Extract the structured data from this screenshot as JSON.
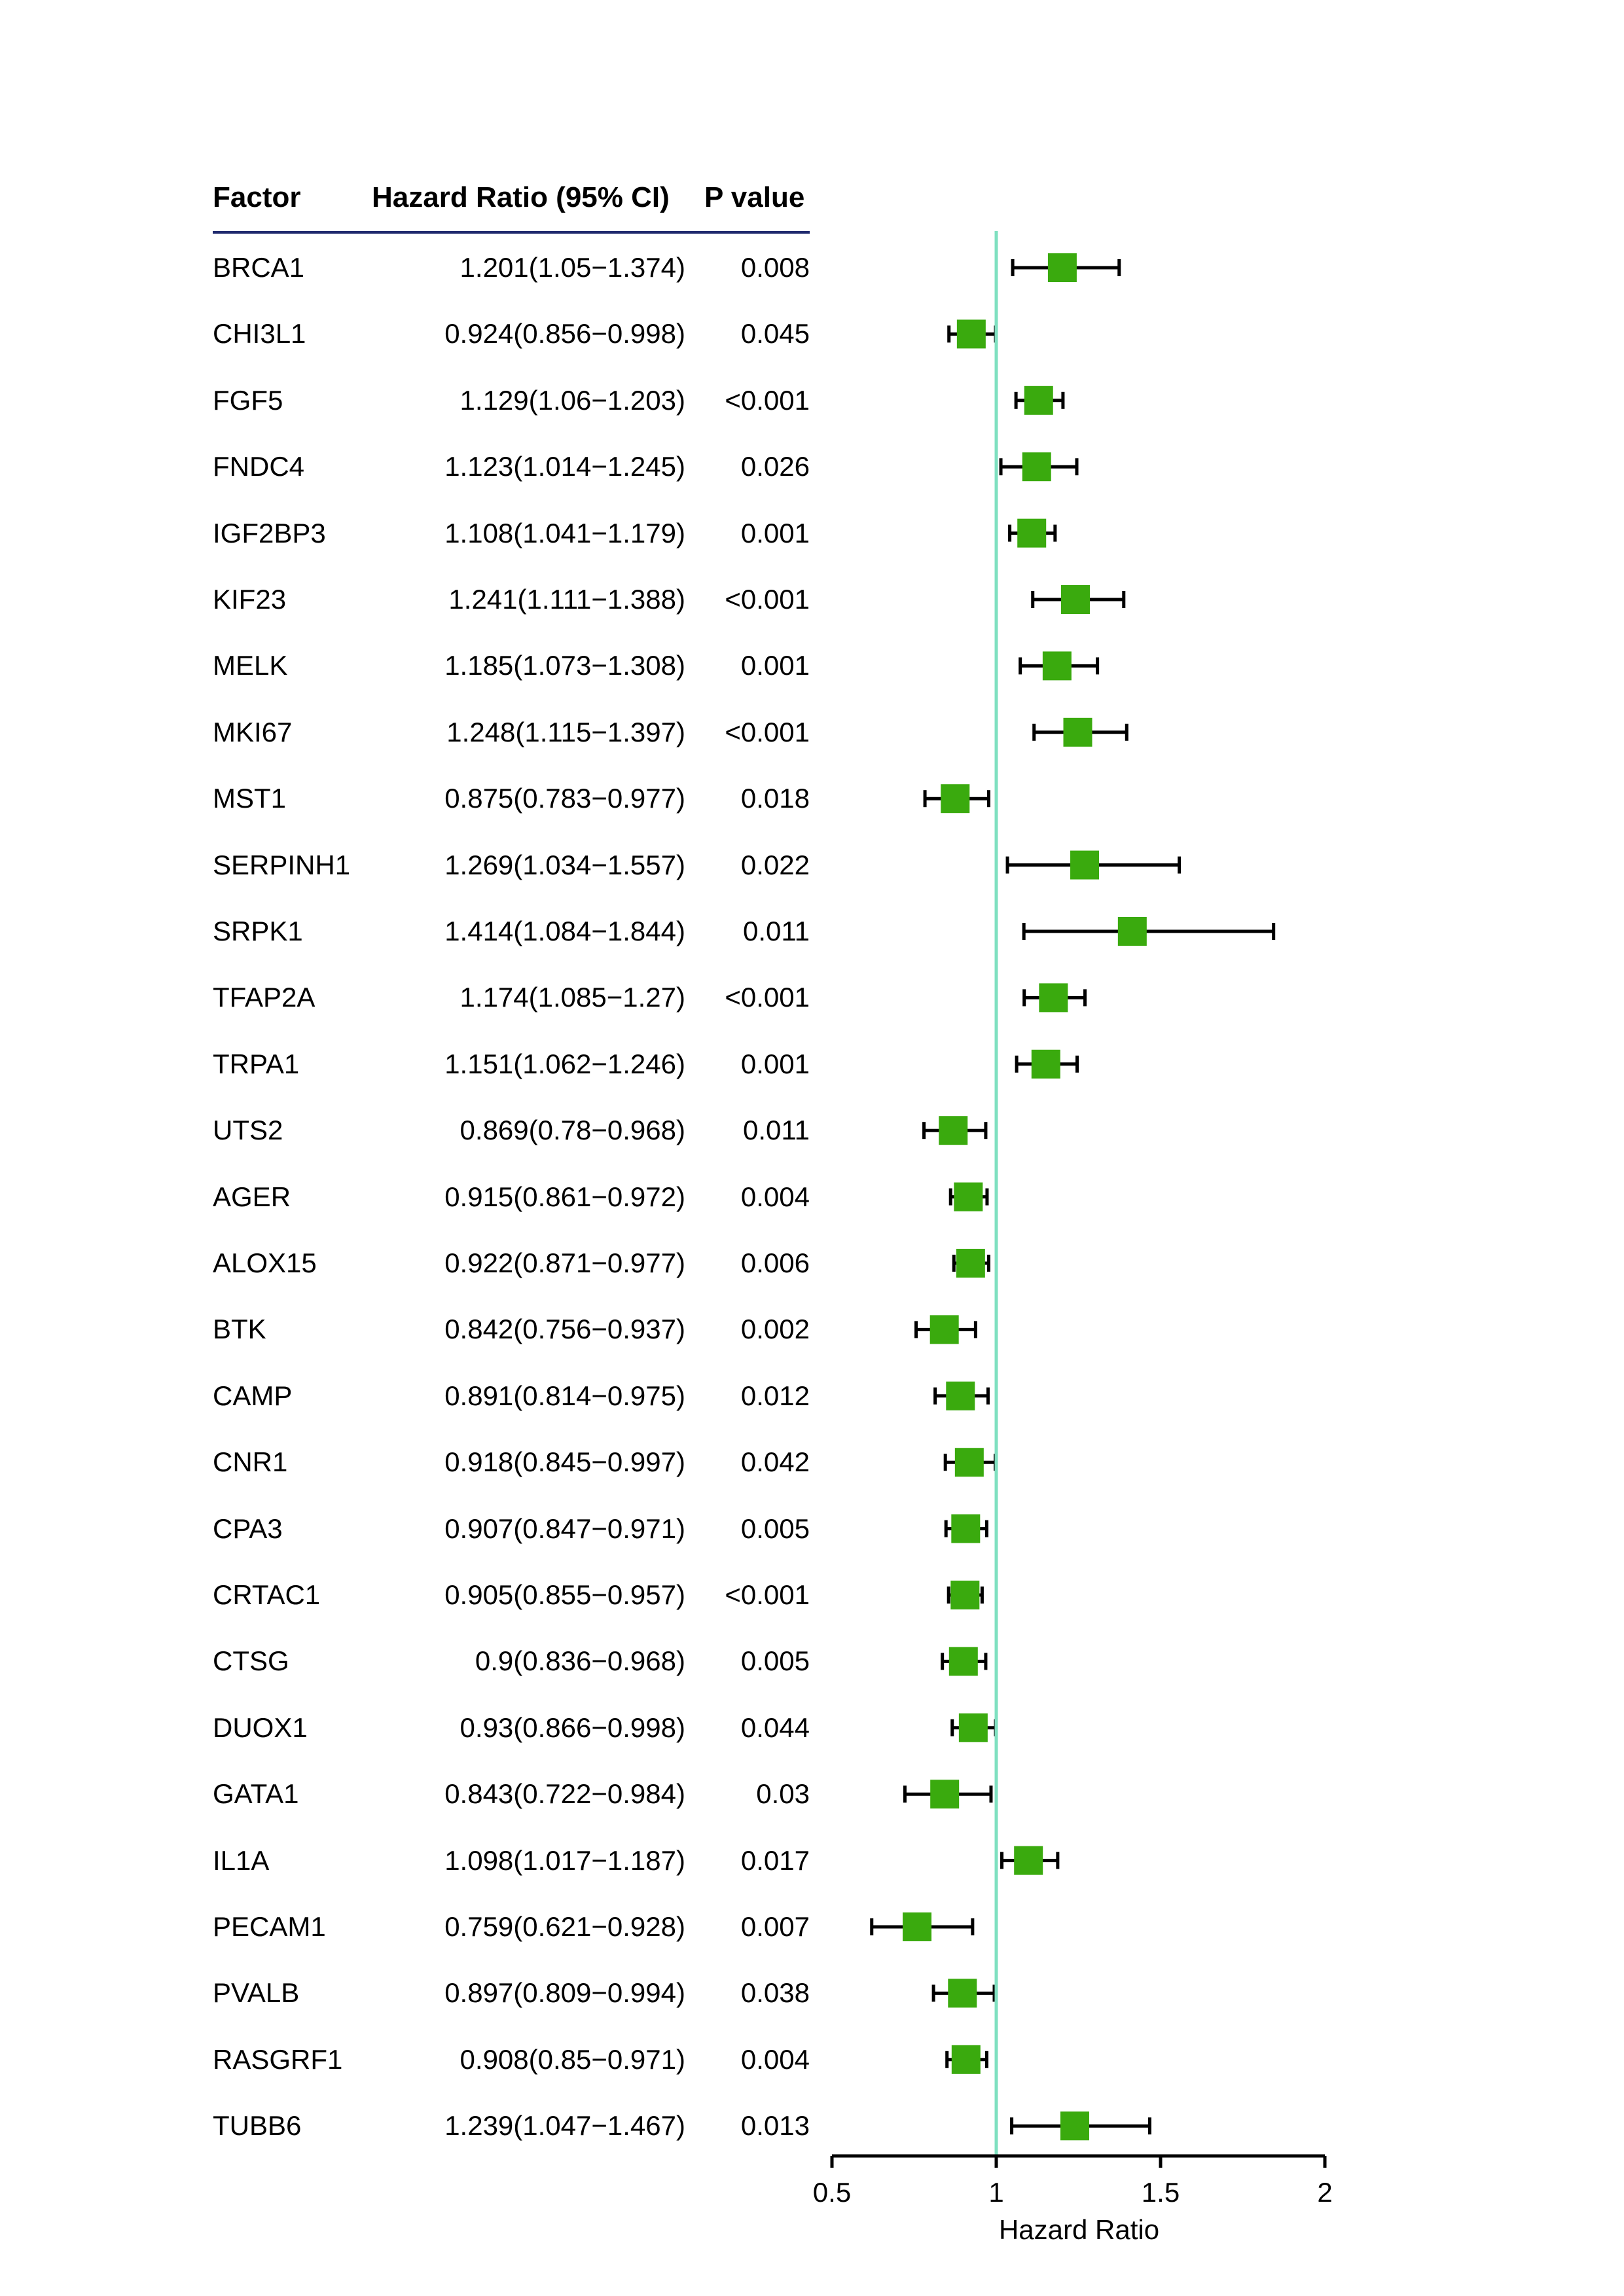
{
  "header": {
    "factor": "Factor",
    "hazard_ratio": "Hazard Ratio (95% CI)",
    "p_value": "P value"
  },
  "colors": {
    "marker": "#3aaa0e",
    "reference_line": "#7fe0c0",
    "header_rule": "#1f2a6e",
    "ci_line": "#000000"
  },
  "chart_data": {
    "type": "forest",
    "xlabel": "Hazard Ratio",
    "xlim": [
      0.5,
      2
    ],
    "xticks": [
      0.5,
      1,
      1.5,
      2
    ],
    "xtick_labels": [
      "0.5",
      "1",
      "1.5",
      "2"
    ],
    "reference_value": 1,
    "rows": [
      {
        "factor": "BRCA1",
        "hr_text": "1.201(1.05−1.374)",
        "p": "0.008",
        "hr": 1.201,
        "lo": 1.05,
        "hi": 1.374
      },
      {
        "factor": "CHI3L1",
        "hr_text": "0.924(0.856−0.998)",
        "p": "0.045",
        "hr": 0.924,
        "lo": 0.856,
        "hi": 0.998
      },
      {
        "factor": "FGF5",
        "hr_text": "1.129(1.06−1.203)",
        "p": "<0.001",
        "hr": 1.129,
        "lo": 1.06,
        "hi": 1.203
      },
      {
        "factor": "FNDC4",
        "hr_text": "1.123(1.014−1.245)",
        "p": "0.026",
        "hr": 1.123,
        "lo": 1.014,
        "hi": 1.245
      },
      {
        "factor": "IGF2BP3",
        "hr_text": "1.108(1.041−1.179)",
        "p": "0.001",
        "hr": 1.108,
        "lo": 1.041,
        "hi": 1.179
      },
      {
        "factor": "KIF23",
        "hr_text": "1.241(1.111−1.388)",
        "p": "<0.001",
        "hr": 1.241,
        "lo": 1.111,
        "hi": 1.388
      },
      {
        "factor": "MELK",
        "hr_text": "1.185(1.073−1.308)",
        "p": "0.001",
        "hr": 1.185,
        "lo": 1.073,
        "hi": 1.308
      },
      {
        "factor": "MKI67",
        "hr_text": "1.248(1.115−1.397)",
        "p": "<0.001",
        "hr": 1.248,
        "lo": 1.115,
        "hi": 1.397
      },
      {
        "factor": "MST1",
        "hr_text": "0.875(0.783−0.977)",
        "p": "0.018",
        "hr": 0.875,
        "lo": 0.783,
        "hi": 0.977
      },
      {
        "factor": "SERPINH1",
        "hr_text": "1.269(1.034−1.557)",
        "p": "0.022",
        "hr": 1.269,
        "lo": 1.034,
        "hi": 1.557
      },
      {
        "factor": "SRPK1",
        "hr_text": "1.414(1.084−1.844)",
        "p": "0.011",
        "hr": 1.414,
        "lo": 1.084,
        "hi": 1.844
      },
      {
        "factor": "TFAP2A",
        "hr_text": "1.174(1.085−1.27)",
        "p": "<0.001",
        "hr": 1.174,
        "lo": 1.085,
        "hi": 1.27
      },
      {
        "factor": "TRPA1",
        "hr_text": "1.151(1.062−1.246)",
        "p": "0.001",
        "hr": 1.151,
        "lo": 1.062,
        "hi": 1.246
      },
      {
        "factor": "UTS2",
        "hr_text": "0.869(0.78−0.968)",
        "p": "0.011",
        "hr": 0.869,
        "lo": 0.78,
        "hi": 0.968
      },
      {
        "factor": "AGER",
        "hr_text": "0.915(0.861−0.972)",
        "p": "0.004",
        "hr": 0.915,
        "lo": 0.861,
        "hi": 0.972
      },
      {
        "factor": "ALOX15",
        "hr_text": "0.922(0.871−0.977)",
        "p": "0.006",
        "hr": 0.922,
        "lo": 0.871,
        "hi": 0.977
      },
      {
        "factor": "BTK",
        "hr_text": "0.842(0.756−0.937)",
        "p": "0.002",
        "hr": 0.842,
        "lo": 0.756,
        "hi": 0.937
      },
      {
        "factor": "CAMP",
        "hr_text": "0.891(0.814−0.975)",
        "p": "0.012",
        "hr": 0.891,
        "lo": 0.814,
        "hi": 0.975
      },
      {
        "factor": "CNR1",
        "hr_text": "0.918(0.845−0.997)",
        "p": "0.042",
        "hr": 0.918,
        "lo": 0.845,
        "hi": 0.997
      },
      {
        "factor": "CPA3",
        "hr_text": "0.907(0.847−0.971)",
        "p": "0.005",
        "hr": 0.907,
        "lo": 0.847,
        "hi": 0.971
      },
      {
        "factor": "CRTAC1",
        "hr_text": "0.905(0.855−0.957)",
        "p": "<0.001",
        "hr": 0.905,
        "lo": 0.855,
        "hi": 0.957
      },
      {
        "factor": "CTSG",
        "hr_text": "0.9(0.836−0.968)",
        "p": "0.005",
        "hr": 0.9,
        "lo": 0.836,
        "hi": 0.968
      },
      {
        "factor": "DUOX1",
        "hr_text": "0.93(0.866−0.998)",
        "p": "0.044",
        "hr": 0.93,
        "lo": 0.866,
        "hi": 0.998
      },
      {
        "factor": "GATA1",
        "hr_text": "0.843(0.722−0.984)",
        "p": "0.03",
        "hr": 0.843,
        "lo": 0.722,
        "hi": 0.984
      },
      {
        "factor": "IL1A",
        "hr_text": "1.098(1.017−1.187)",
        "p": "0.017",
        "hr": 1.098,
        "lo": 1.017,
        "hi": 1.187
      },
      {
        "factor": "PECAM1",
        "hr_text": "0.759(0.621−0.928)",
        "p": "0.007",
        "hr": 0.759,
        "lo": 0.621,
        "hi": 0.928
      },
      {
        "factor": "PVALB",
        "hr_text": "0.897(0.809−0.994)",
        "p": "0.038",
        "hr": 0.897,
        "lo": 0.809,
        "hi": 0.994
      },
      {
        "factor": "RASGRF1",
        "hr_text": "0.908(0.85−0.971)",
        "p": "0.004",
        "hr": 0.908,
        "lo": 0.85,
        "hi": 0.971
      },
      {
        "factor": "TUBB6",
        "hr_text": "1.239(1.047−1.467)",
        "p": "0.013",
        "hr": 1.239,
        "lo": 1.047,
        "hi": 1.467
      }
    ]
  }
}
